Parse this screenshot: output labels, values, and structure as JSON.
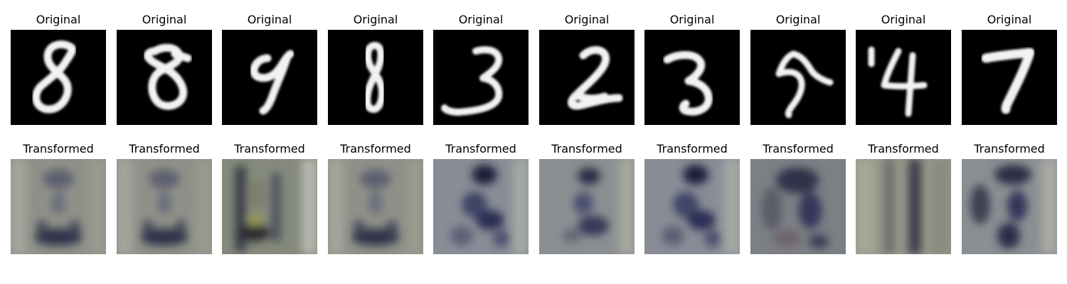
{
  "figure": {
    "rows": [
      {
        "id": "original",
        "panels": [
          {
            "title": "Original",
            "digit": "8"
          },
          {
            "title": "Original",
            "digit": "8"
          },
          {
            "title": "Original",
            "digit": "9"
          },
          {
            "title": "Original",
            "digit": "8"
          },
          {
            "title": "Original",
            "digit": "3"
          },
          {
            "title": "Original",
            "digit": "2"
          },
          {
            "title": "Original",
            "digit": "3"
          },
          {
            "title": "Original",
            "digit": "5"
          },
          {
            "title": "Original",
            "digit": "4"
          },
          {
            "title": "Original",
            "digit": "7"
          }
        ]
      },
      {
        "id": "transformed",
        "panels": [
          {
            "title": "Transformed"
          },
          {
            "title": "Transformed"
          },
          {
            "title": "Transformed"
          },
          {
            "title": "Transformed"
          },
          {
            "title": "Transformed"
          },
          {
            "title": "Transformed"
          },
          {
            "title": "Transformed"
          },
          {
            "title": "Transformed"
          },
          {
            "title": "Transformed"
          },
          {
            "title": "Transformed"
          }
        ]
      }
    ],
    "colors": {
      "digit_background": "#000000",
      "digit_stroke": "#f2f2f2",
      "transformed_base": "#8f9189",
      "transformed_dark": "#2e3048",
      "title_text": "#000000"
    }
  }
}
